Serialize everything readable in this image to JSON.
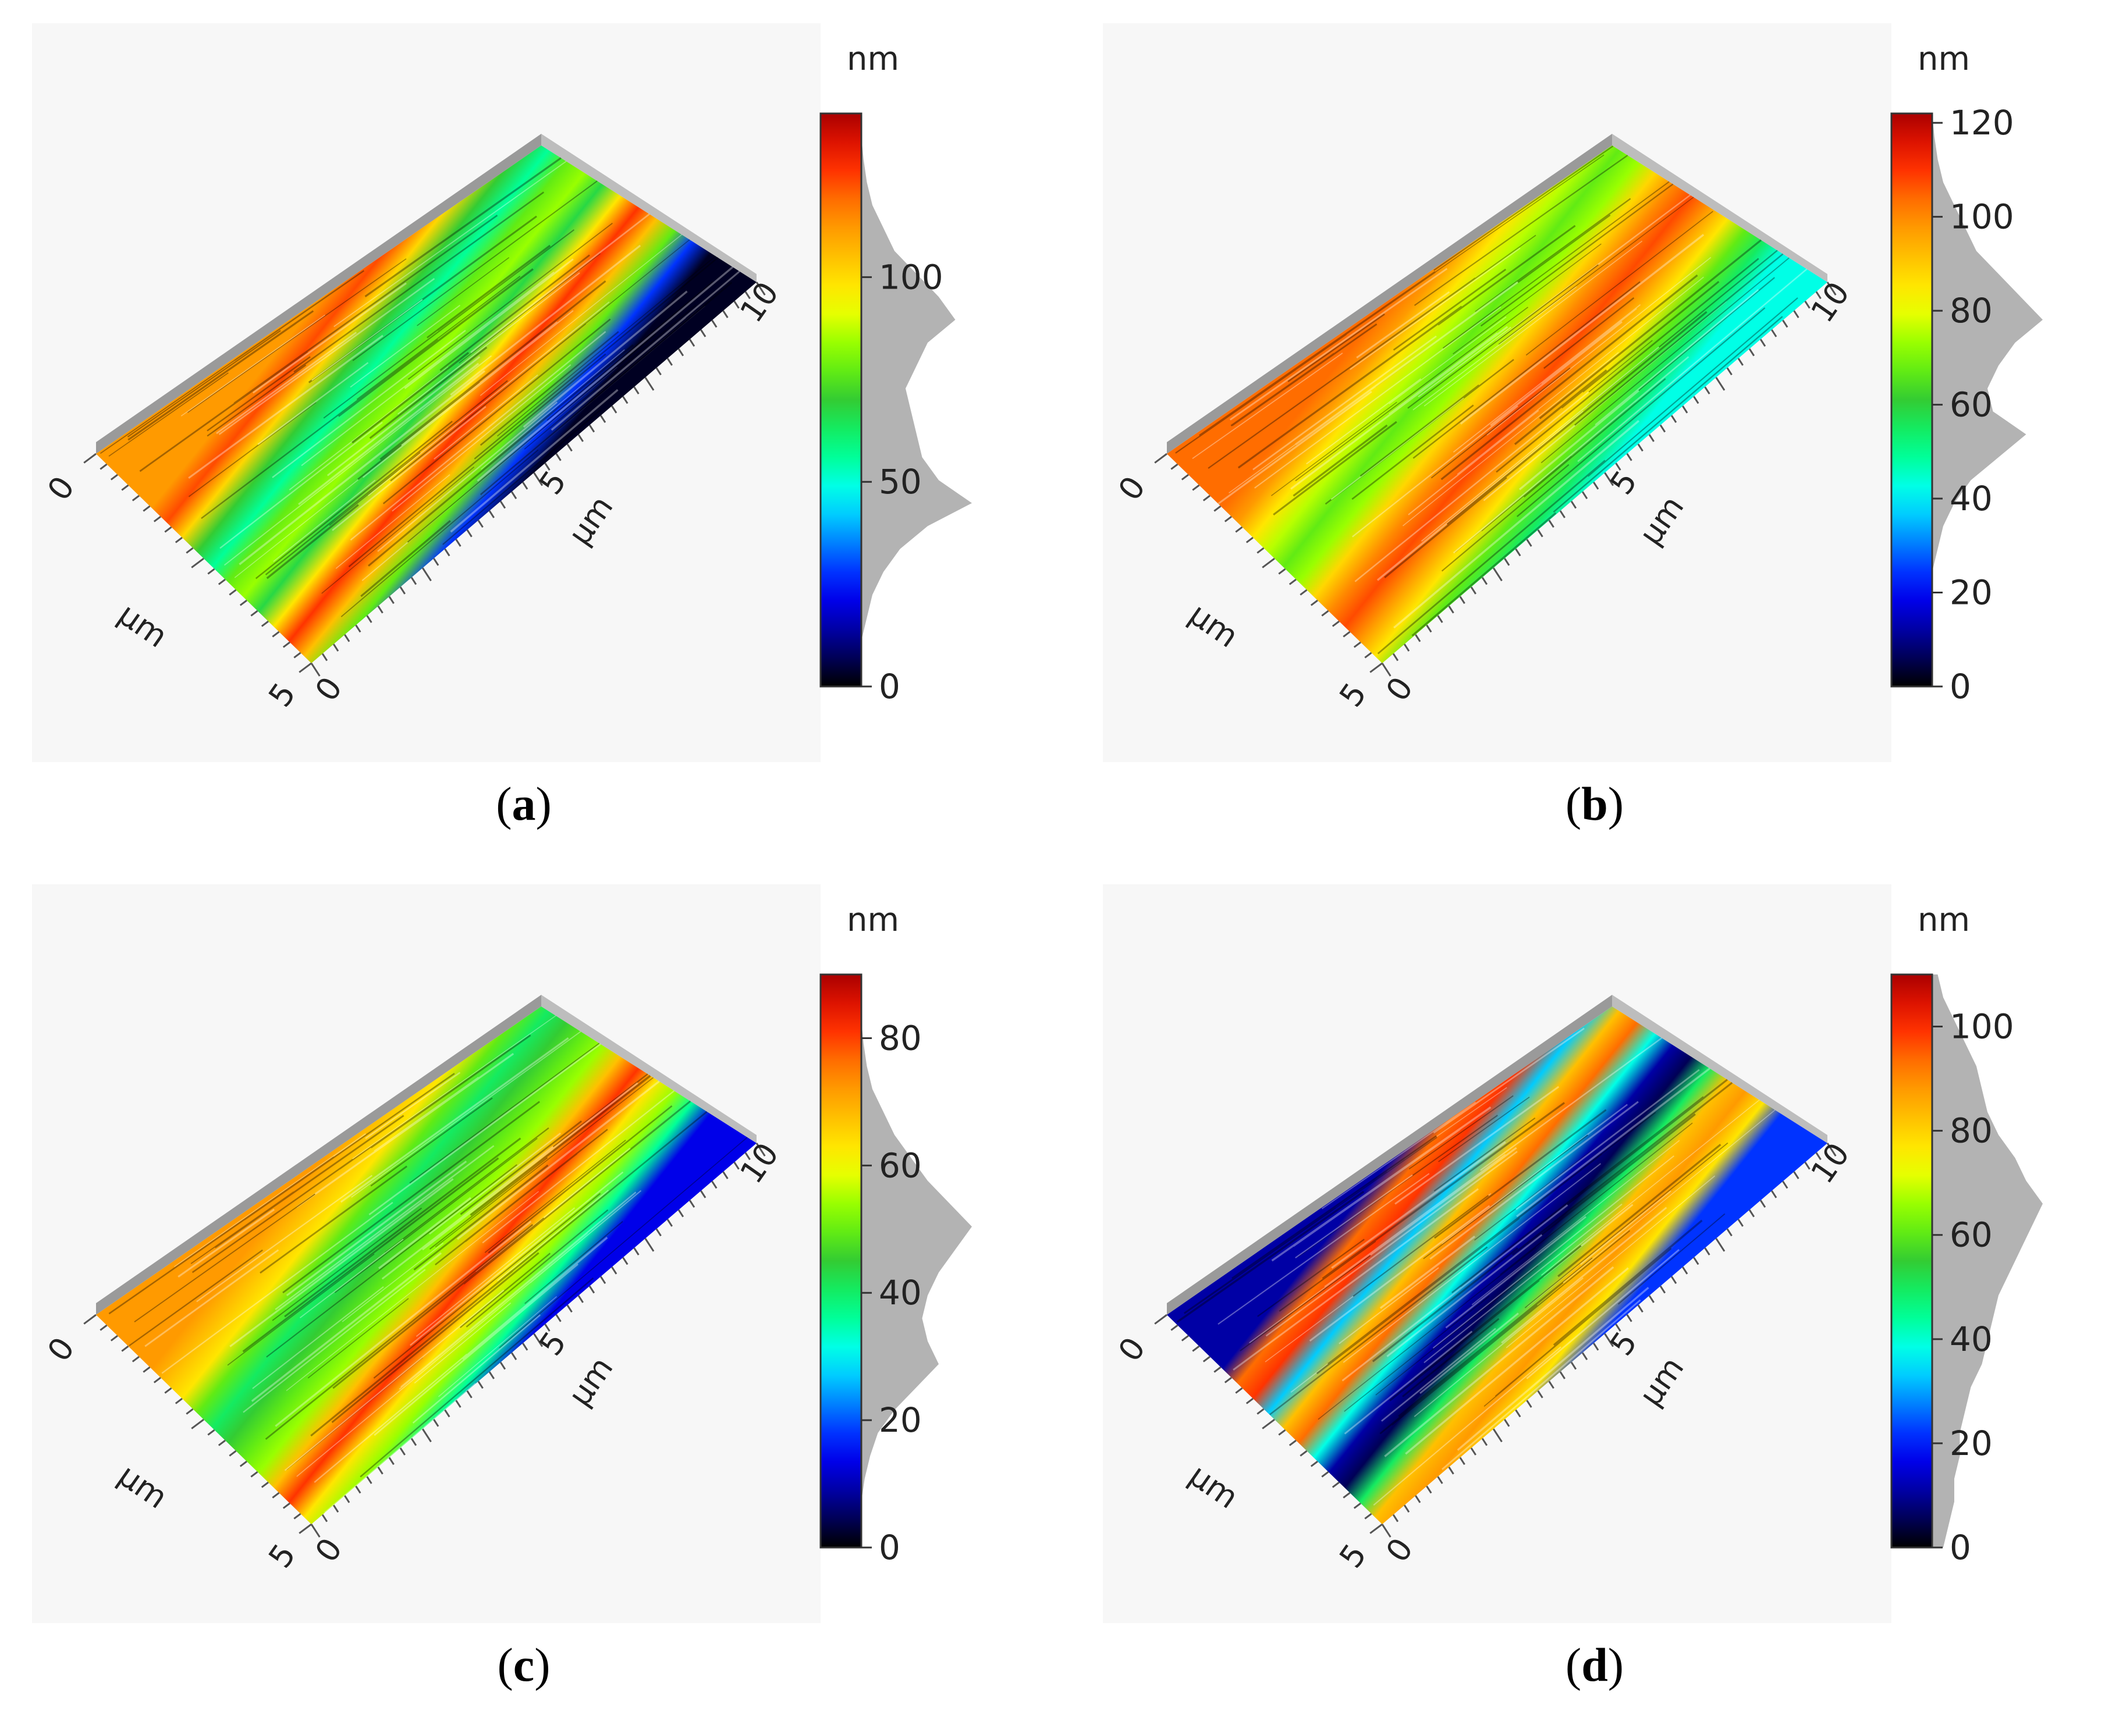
{
  "colors": {
    "jet": [
      "#000000",
      "#00008f",
      "#0000ff",
      "#0080ff",
      "#00ffff",
      "#00ff80",
      "#33cc33",
      "#80ff00",
      "#ffff00",
      "#ffc000",
      "#ff8000",
      "#ff2000",
      "#aa0000"
    ],
    "plot_bg": "#f7f7f7",
    "histogram": "#b3b3b3"
  },
  "panels": [
    {
      "id": "a",
      "caption_letter": "a",
      "colorbar": {
        "unit": "nm",
        "min": 0,
        "max": 140,
        "ticks": [
          {
            "v": 0,
            "label": "0"
          },
          {
            "v": 50,
            "label": "50"
          },
          {
            "v": 100,
            "label": "100"
          }
        ]
      },
      "axes": {
        "long": {
          "start": "0",
          "mid": "5",
          "end": "10",
          "unit": "µm"
        },
        "short": {
          "start": "0",
          "end": "5",
          "unit": "µm"
        }
      },
      "bands": [
        0.8,
        0.88,
        0.72,
        0.5,
        0.4,
        0.55,
        0.6,
        0.48,
        0.7,
        0.9,
        0.75,
        0.55,
        0.2,
        0.02
      ],
      "histogram": [
        0,
        0,
        0,
        0.05,
        0.1,
        0.2,
        0.35,
        0.6,
        1.0,
        0.7,
        0.55,
        0.5,
        0.45,
        0.4,
        0.5,
        0.6,
        0.85,
        0.7,
        0.5,
        0.3,
        0.2,
        0.1,
        0.05,
        0.02,
        0,
        0
      ]
    },
    {
      "id": "b",
      "caption_letter": "b",
      "colorbar": {
        "unit": "nm",
        "min": 0,
        "max": 122,
        "ticks": [
          {
            "v": 0,
            "label": "0"
          },
          {
            "v": 20,
            "label": "20"
          },
          {
            "v": 40,
            "label": "40"
          },
          {
            "v": 60,
            "label": "60"
          },
          {
            "v": 80,
            "label": "80"
          },
          {
            "v": 100,
            "label": "100"
          },
          {
            "v": 120,
            "label": "120"
          }
        ]
      },
      "axes": {
        "long": {
          "start": "0",
          "mid": "5",
          "end": "10",
          "unit": "µm"
        },
        "short": {
          "start": "0",
          "end": "5",
          "unit": "µm"
        }
      },
      "bands": [
        0.85,
        0.8,
        0.7,
        0.62,
        0.55,
        0.6,
        0.72,
        0.82,
        0.88,
        0.8,
        0.7,
        0.55,
        0.45,
        0.35
      ],
      "histogram": [
        0,
        0,
        0,
        0,
        0,
        0,
        0.05,
        0.1,
        0.2,
        0.35,
        0.6,
        0.85,
        0.55,
        0.5,
        0.6,
        0.75,
        1.0,
        0.8,
        0.6,
        0.4,
        0.3,
        0.2,
        0.1,
        0.05,
        0.02,
        0
      ]
    },
    {
      "id": "c",
      "caption_letter": "c",
      "colorbar": {
        "unit": "nm",
        "min": 0,
        "max": 90,
        "ticks": [
          {
            "v": 0,
            "label": "0"
          },
          {
            "v": 20,
            "label": "20"
          },
          {
            "v": 40,
            "label": "40"
          },
          {
            "v": 60,
            "label": "60"
          },
          {
            "v": 80,
            "label": "80"
          }
        ]
      },
      "axes": {
        "long": {
          "start": "0",
          "mid": "5",
          "end": "10",
          "unit": "µm"
        },
        "short": {
          "start": "0",
          "end": "5",
          "unit": "µm"
        }
      },
      "bands": [
        0.8,
        0.75,
        0.7,
        0.55,
        0.45,
        0.5,
        0.55,
        0.6,
        0.75,
        0.9,
        0.7,
        0.6,
        0.4,
        0.15
      ],
      "histogram": [
        0,
        0,
        0,
        0.03,
        0.08,
        0.15,
        0.3,
        0.5,
        0.7,
        0.6,
        0.55,
        0.6,
        0.7,
        0.85,
        1.0,
        0.8,
        0.6,
        0.45,
        0.3,
        0.2,
        0.1,
        0.05,
        0.02,
        0,
        0,
        0
      ]
    },
    {
      "id": "d",
      "caption_letter": "d",
      "colorbar": {
        "unit": "nm",
        "min": 0,
        "max": 110,
        "ticks": [
          {
            "v": 0,
            "label": "0"
          },
          {
            "v": 20,
            "label": "20"
          },
          {
            "v": 40,
            "label": "40"
          },
          {
            "v": 60,
            "label": "60"
          },
          {
            "v": 80,
            "label": "80"
          },
          {
            "v": 100,
            "label": "100"
          }
        ]
      },
      "axes": {
        "long": {
          "start": "0",
          "mid": "5",
          "end": "10",
          "unit": "µm"
        },
        "short": {
          "start": "0",
          "end": "5",
          "unit": "µm"
        }
      },
      "bands": [
        0.1,
        0.85,
        0.9,
        0.3,
        0.75,
        0.85,
        0.35,
        0.1,
        0.05,
        0.45,
        0.75,
        0.8,
        0.7,
        0.2
      ],
      "histogram": [
        0.1,
        0.15,
        0.2,
        0.2,
        0.25,
        0.25,
        0.3,
        0.35,
        0.45,
        0.5,
        0.55,
        0.6,
        0.7,
        0.8,
        0.9,
        1.0,
        0.85,
        0.75,
        0.6,
        0.5,
        0.45,
        0.4,
        0.3,
        0.2,
        0.1,
        0.05
      ]
    }
  ]
}
